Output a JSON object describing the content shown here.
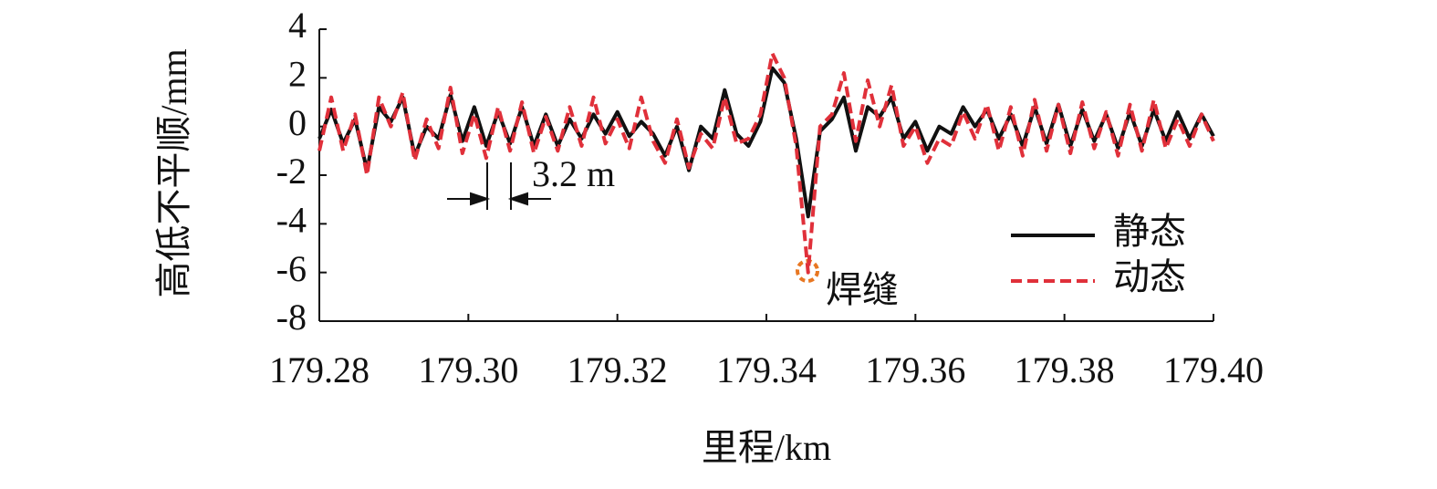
{
  "chart_data": {
    "type": "line",
    "x_label": "里程/km",
    "y_label": "高低不平顺/mm",
    "x": [
      179.28,
      179.2816,
      179.2832,
      179.2848,
      179.2864,
      179.288,
      179.2896,
      179.2912,
      179.2928,
      179.2944,
      179.296,
      179.2976,
      179.2992,
      179.3008,
      179.3024,
      179.304,
      179.3056,
      179.3072,
      179.3088,
      179.3104,
      179.312,
      179.3136,
      179.3152,
      179.3168,
      179.3184,
      179.32,
      179.3216,
      179.3232,
      179.3248,
      179.3264,
      179.328,
      179.3296,
      179.3312,
      179.3328,
      179.3344,
      179.336,
      179.3376,
      179.3392,
      179.3408,
      179.3424,
      179.344,
      179.3456,
      179.3472,
      179.3488,
      179.3504,
      179.352,
      179.3536,
      179.3552,
      179.3568,
      179.3584,
      179.36,
      179.3616,
      179.3632,
      179.3648,
      179.3664,
      179.368,
      179.3696,
      179.3712,
      179.3728,
      179.3744,
      179.376,
      179.3776,
      179.3792,
      179.3808,
      179.3824,
      179.384,
      179.3856,
      179.3872,
      179.3888,
      179.3904,
      179.392,
      179.3936,
      179.3952,
      179.3968,
      179.3984,
      179.4
    ],
    "series": [
      {
        "name": "静态",
        "color": "#111111",
        "dash": false,
        "values": [
          -0.5,
          0.7,
          -0.7,
          0.3,
          -1.8,
          0.8,
          0.2,
          1.2,
          -1.2,
          0.0,
          -0.5,
          1.3,
          -0.6,
          0.8,
          -0.8,
          0.6,
          -0.7,
          0.8,
          -0.8,
          0.5,
          -0.8,
          0.3,
          -0.5,
          0.5,
          -0.3,
          0.6,
          -0.4,
          0.2,
          -0.3,
          -1.2,
          0.0,
          -1.8,
          0.0,
          -0.5,
          1.5,
          -0.3,
          -0.8,
          0.2,
          2.4,
          1.8,
          -0.5,
          -3.7,
          -0.2,
          0.3,
          1.2,
          -1.0,
          0.8,
          0.4,
          1.2,
          -0.5,
          0.2,
          -1.0,
          0.0,
          -0.3,
          0.8,
          0.0,
          0.7,
          -0.5,
          0.5,
          -0.8,
          0.8,
          -0.7,
          0.9,
          -0.8,
          0.7,
          -0.6,
          0.5,
          -0.9,
          0.6,
          -0.8,
          0.7,
          -0.6,
          0.6,
          -0.5,
          0.5,
          -0.4
        ]
      },
      {
        "name": "动态",
        "color": "#e0303a",
        "dash": true,
        "values": [
          -1.0,
          1.2,
          -1.0,
          0.5,
          -2.0,
          1.2,
          0.0,
          1.4,
          -1.4,
          0.3,
          -0.9,
          1.6,
          -1.1,
          0.5,
          -1.3,
          0.8,
          -1.0,
          1.0,
          -1.1,
          0.4,
          -1.0,
          0.8,
          -0.8,
          1.2,
          -0.7,
          0.3,
          -0.9,
          1.2,
          -0.6,
          -1.5,
          0.3,
          -1.7,
          -0.3,
          -0.9,
          1.2,
          -0.7,
          -0.5,
          0.5,
          3.0,
          2.0,
          -0.8,
          -6.0,
          0.0,
          0.5,
          2.2,
          -0.6,
          1.9,
          0.0,
          1.7,
          -0.8,
          0.0,
          -1.5,
          -0.5,
          -0.8,
          0.6,
          -0.5,
          0.9,
          -1.0,
          0.8,
          -1.2,
          1.1,
          -1.0,
          0.9,
          -1.1,
          1.0,
          -0.9,
          0.6,
          -1.2,
          0.9,
          -1.0,
          1.1,
          -0.9,
          0.3,
          -0.8,
          0.5,
          -0.6
        ]
      }
    ],
    "xlim": [
      179.28,
      179.4
    ],
    "xticks": [
      179.28,
      {
        "value": 179.3,
        "label": "179.30"
      },
      179.32,
      179.34,
      179.36,
      179.38,
      {
        "value": 179.4,
        "label": "179.40"
      }
    ],
    "ylim": [
      -8,
      4
    ],
    "yticks": [
      4,
      2,
      0,
      -2,
      -4,
      -6,
      -8
    ],
    "grid": false,
    "legend": "lower right",
    "annotations": [
      "3.2 m",
      "焊缝"
    ]
  }
}
